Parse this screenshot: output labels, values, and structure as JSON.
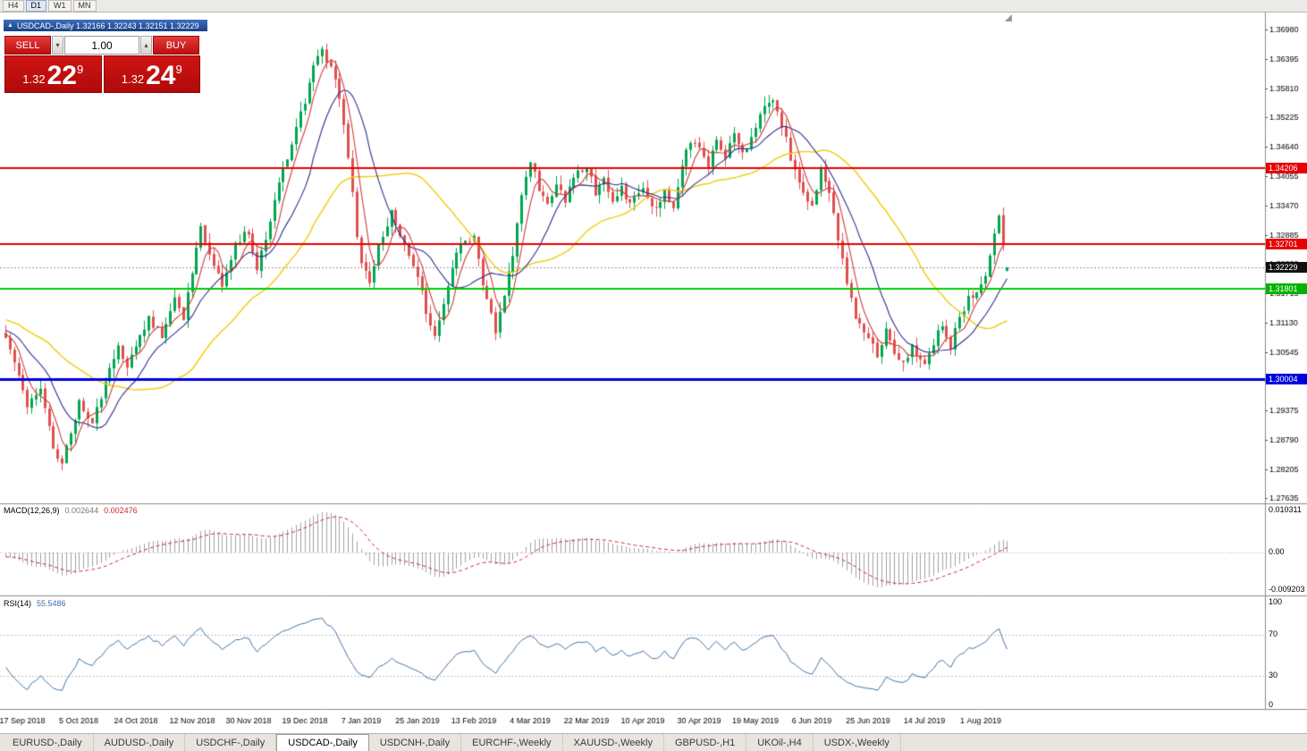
{
  "toolbar": {
    "periods": [
      {
        "label": "H4",
        "active": false
      },
      {
        "label": "D1",
        "active": true
      },
      {
        "label": "W1",
        "active": false
      },
      {
        "label": "MN",
        "active": false
      }
    ]
  },
  "chart_window": {
    "collapse_icon": "▲",
    "title": "USDCAD-,Daily 1.32166 1.32243 1.32151 1.32229"
  },
  "one_click": {
    "sell_label": "SELL",
    "buy_label": "BUY",
    "volume": "1.00",
    "volume_down_icon": "▾",
    "volume_up_icon": "▴",
    "sell_price": {
      "prefix": "1.32",
      "big": "22",
      "sup": "9"
    },
    "buy_price": {
      "prefix": "1.32",
      "big": "24",
      "sup": "9"
    }
  },
  "indicators": {
    "macd": {
      "name": "MACD(12,26,9)",
      "value_main": "0.002644",
      "value_signal": "0.002476",
      "axis_labels": [
        "0.010311",
        "0.00",
        "-0.009203"
      ]
    },
    "rsi": {
      "name": "RSI(14)",
      "value": "55.5486",
      "axis_labels": [
        "100",
        "70",
        "30",
        "0"
      ],
      "levels": [
        70,
        30
      ]
    }
  },
  "price_tags": [
    {
      "name": "resistance-upper",
      "text": "1.34206",
      "price": 1.34206,
      "bg": "#e60000"
    },
    {
      "name": "resistance-lower",
      "text": "1.32701",
      "price": 1.32701,
      "bg": "#e60000"
    },
    {
      "name": "current-price",
      "text": "1.32229",
      "price": 1.32229,
      "bg": "#111111"
    },
    {
      "name": "support-green",
      "text": "1.31801",
      "price": 1.31801,
      "bg": "#00b300"
    },
    {
      "name": "support-blue",
      "text": "1.30004",
      "price": 1.30004,
      "bg": "#0000dd"
    }
  ],
  "tabs": [
    {
      "label": "EURUSD-,Daily",
      "active": false
    },
    {
      "label": "AUDUSD-,Daily",
      "active": false
    },
    {
      "label": "USDCHF-,Daily",
      "active": false
    },
    {
      "label": "USDCAD-,Daily",
      "active": true
    },
    {
      "label": "USDCNH-,Daily",
      "active": false
    },
    {
      "label": "EURCHF-,Weekly",
      "active": false
    },
    {
      "label": "XAUUSD-,Weekly",
      "active": false
    },
    {
      "label": "GBPUSD-,H1",
      "active": false
    },
    {
      "label": "UKOil-,H4",
      "active": false
    },
    {
      "label": "USDX-,Weekly",
      "active": false
    }
  ],
  "chart_data": {
    "type": "candlestick",
    "symbol": "USDCAD",
    "timeframe": "Daily",
    "current_ohlc": {
      "open": 1.32166,
      "high": 1.32243,
      "low": 1.32151,
      "close": 1.32229
    },
    "current_price": 1.32229,
    "y_axis_ticks": [
      "1.36980",
      "1.36395",
      "1.35810",
      "1.35225",
      "1.34640",
      "1.34055",
      "1.33470",
      "1.32885",
      "1.32300",
      "1.31715",
      "1.31130",
      "1.30545",
      "1.29960",
      "1.29375",
      "1.28790",
      "1.28205",
      "1.27635"
    ],
    "x_axis_labels": [
      "17 Sep 2018",
      "5 Oct 2018",
      "24 Oct 2018",
      "12 Nov 2018",
      "30 Nov 2018",
      "19 Dec 2018",
      "7 Jan 2019",
      "25 Jan 2019",
      "13 Feb 2019",
      "4 Mar 2019",
      "22 Mar 2019",
      "10 Apr 2019",
      "30 Apr 2019",
      "19 May 2019",
      "6 Jun 2019",
      "25 Jun 2019",
      "14 Jul 2019",
      "1 Aug 2019"
    ],
    "x_label_candle_indices": [
      4,
      17,
      30,
      43,
      56,
      69,
      82,
      95,
      108,
      121,
      134,
      147,
      160,
      173,
      186,
      199,
      212,
      225
    ],
    "candle_count": 232,
    "price_keyframes": [
      [
        0,
        1.3085
      ],
      [
        2,
        1.304
      ],
      [
        5,
        1.295
      ],
      [
        8,
        1.2985
      ],
      [
        11,
        1.286
      ],
      [
        13,
        1.2828
      ],
      [
        15,
        1.29
      ],
      [
        17,
        1.295
      ],
      [
        20,
        1.2908
      ],
      [
        23,
        1.2995
      ],
      [
        26,
        1.306
      ],
      [
        28,
        1.3015
      ],
      [
        30,
        1.307
      ],
      [
        33,
        1.3125
      ],
      [
        36,
        1.3085
      ],
      [
        39,
        1.316
      ],
      [
        41,
        1.3125
      ],
      [
        43,
        1.322
      ],
      [
        45,
        1.33
      ],
      [
        48,
        1.3235
      ],
      [
        50,
        1.3185
      ],
      [
        53,
        1.3265
      ],
      [
        56,
        1.3295
      ],
      [
        58,
        1.3225
      ],
      [
        60,
        1.3285
      ],
      [
        63,
        1.339
      ],
      [
        66,
        1.3475
      ],
      [
        69,
        1.3555
      ],
      [
        71,
        1.3635
      ],
      [
        73,
        1.3655
      ],
      [
        75,
        1.362
      ],
      [
        77,
        1.356
      ],
      [
        79,
        1.3445
      ],
      [
        81,
        1.3285
      ],
      [
        82,
        1.3235
      ],
      [
        84,
        1.3195
      ],
      [
        86,
        1.3265
      ],
      [
        89,
        1.333
      ],
      [
        91,
        1.329
      ],
      [
        95,
        1.3205
      ],
      [
        97,
        1.3135
      ],
      [
        99,
        1.3085
      ],
      [
        101,
        1.315
      ],
      [
        103,
        1.3225
      ],
      [
        105,
        1.327
      ],
      [
        108,
        1.328
      ],
      [
        111,
        1.3155
      ],
      [
        113,
        1.3095
      ],
      [
        115,
        1.3165
      ],
      [
        117,
        1.3255
      ],
      [
        119,
        1.3375
      ],
      [
        121,
        1.344
      ],
      [
        123,
        1.3385
      ],
      [
        125,
        1.3345
      ],
      [
        127,
        1.3395
      ],
      [
        129,
        1.3355
      ],
      [
        131,
        1.3405
      ],
      [
        134,
        1.342
      ],
      [
        136,
        1.3375
      ],
      [
        138,
        1.3405
      ],
      [
        140,
        1.3355
      ],
      [
        142,
        1.3385
      ],
      [
        144,
        1.3345
      ],
      [
        147,
        1.3385
      ],
      [
        150,
        1.3335
      ],
      [
        152,
        1.3375
      ],
      [
        154,
        1.3345
      ],
      [
        156,
        1.3425
      ],
      [
        158,
        1.348
      ],
      [
        160,
        1.3455
      ],
      [
        162,
        1.3425
      ],
      [
        164,
        1.3475
      ],
      [
        166,
        1.3445
      ],
      [
        168,
        1.3485
      ],
      [
        170,
        1.3445
      ],
      [
        173,
        1.3495
      ],
      [
        175,
        1.3545
      ],
      [
        177,
        1.356
      ],
      [
        179,
        1.3505
      ],
      [
        181,
        1.3445
      ],
      [
        183,
        1.3385
      ],
      [
        186,
        1.334
      ],
      [
        188,
        1.342
      ],
      [
        190,
        1.3365
      ],
      [
        192,
        1.3285
      ],
      [
        194,
        1.3185
      ],
      [
        196,
        1.3125
      ],
      [
        199,
        1.3085
      ],
      [
        201,
        1.3045
      ],
      [
        203,
        1.3095
      ],
      [
        205,
        1.3055
      ],
      [
        207,
        1.303
      ],
      [
        209,
        1.3065
      ],
      [
        212,
        1.3035
      ],
      [
        214,
        1.3075
      ],
      [
        216,
        1.3105
      ],
      [
        218,
        1.3065
      ],
      [
        220,
        1.3125
      ],
      [
        222,
        1.316
      ],
      [
        225,
        1.3185
      ],
      [
        227,
        1.3245
      ],
      [
        229,
        1.333
      ],
      [
        230,
        1.3265
      ],
      [
        231,
        1.32229
      ]
    ],
    "horizontal_lines": [
      {
        "price": 1.34206,
        "color": "#e60000",
        "width": 2
      },
      {
        "price": 1.32701,
        "color": "#e60000",
        "width": 2
      },
      {
        "price": 1.31801,
        "color": "#00cc00",
        "width": 2
      },
      {
        "price": 1.30004,
        "color": "#0000dd",
        "width": 3
      }
    ],
    "current_price_line": {
      "price": 1.32229,
      "color": "#9a9a9a"
    },
    "moving_averages": [
      {
        "period": 34,
        "color": "#efcf1a"
      },
      {
        "period": 13,
        "color": "#2d2d8f"
      },
      {
        "period": 5,
        "color": "#cf3a3a"
      }
    ],
    "colors": {
      "up": "#00a651",
      "down": "#e04f4f"
    },
    "macd": {
      "fast": 12,
      "slow": 26,
      "signal": 9,
      "histogram_color": "#a0a0a0",
      "signal_color": "#cc2a2a"
    },
    "rsi": {
      "period": 14,
      "color": "#4172a6"
    }
  }
}
